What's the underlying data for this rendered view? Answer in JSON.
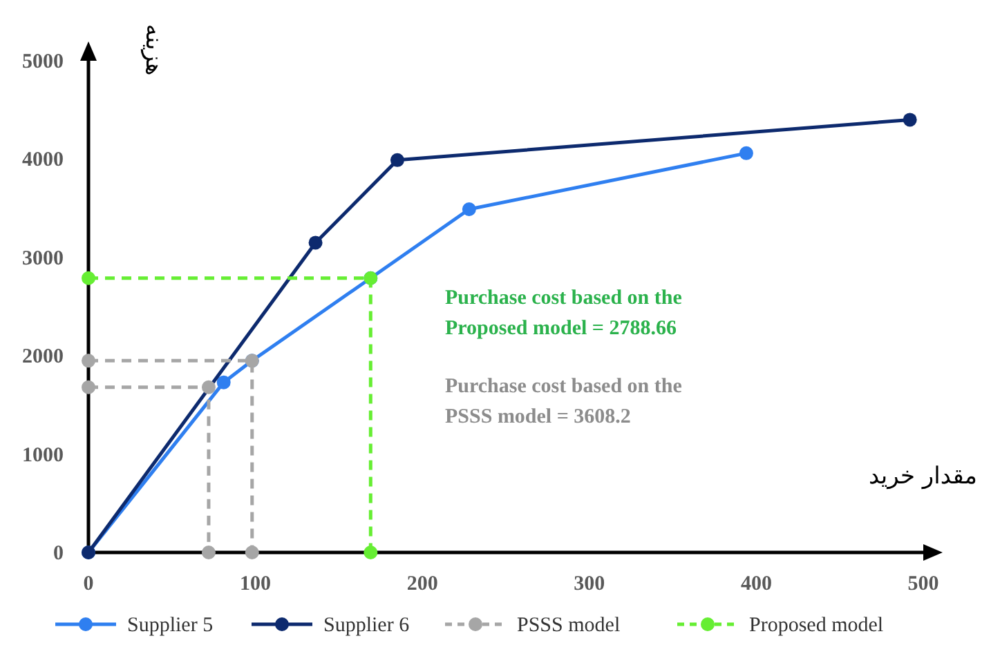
{
  "chart_data": {
    "type": "line",
    "xlabel": "مقدار خرید",
    "ylabel": "هزینه",
    "xlim": [
      0,
      500
    ],
    "ylim": [
      0,
      5000
    ],
    "xticks": [
      0,
      100,
      200,
      300,
      400,
      500
    ],
    "yticks": [
      0,
      1000,
      2000,
      3000,
      4000,
      5000
    ],
    "grid": false,
    "legend": "bottom",
    "marker": "circle",
    "series": [
      {
        "name": "Supplier 5",
        "color": "#2f7ff0",
        "x": [
          0,
          81,
          98,
          169,
          228,
          394
        ],
        "values": [
          0,
          1730,
          1950,
          2790,
          3490,
          4060
        ],
        "line_style": "solid"
      },
      {
        "name": "Supplier 6",
        "color": "#0d2a6e",
        "x": [
          0,
          136,
          185,
          492
        ],
        "values": [
          0,
          3150,
          3990,
          4400
        ],
        "line_style": "solid"
      },
      {
        "name": "PSSS model",
        "color": "#a6a6a6",
        "x": [
          0,
          72,
          72,
          null,
          0,
          98,
          98
        ],
        "values": [
          1680,
          1680,
          0,
          null,
          1950,
          1950,
          0
        ],
        "line_style": "dashed"
      },
      {
        "name": "Proposed model",
        "color": "#66ee33",
        "x": [
          0,
          169,
          169
        ],
        "values": [
          2790,
          2790,
          0
        ],
        "line_style": "dashed"
      }
    ],
    "annotations": [
      "Purchase cost based on the Proposed model = 2788.66",
      "Purchase cost based on the PSSS model = 3608.2"
    ]
  }
}
